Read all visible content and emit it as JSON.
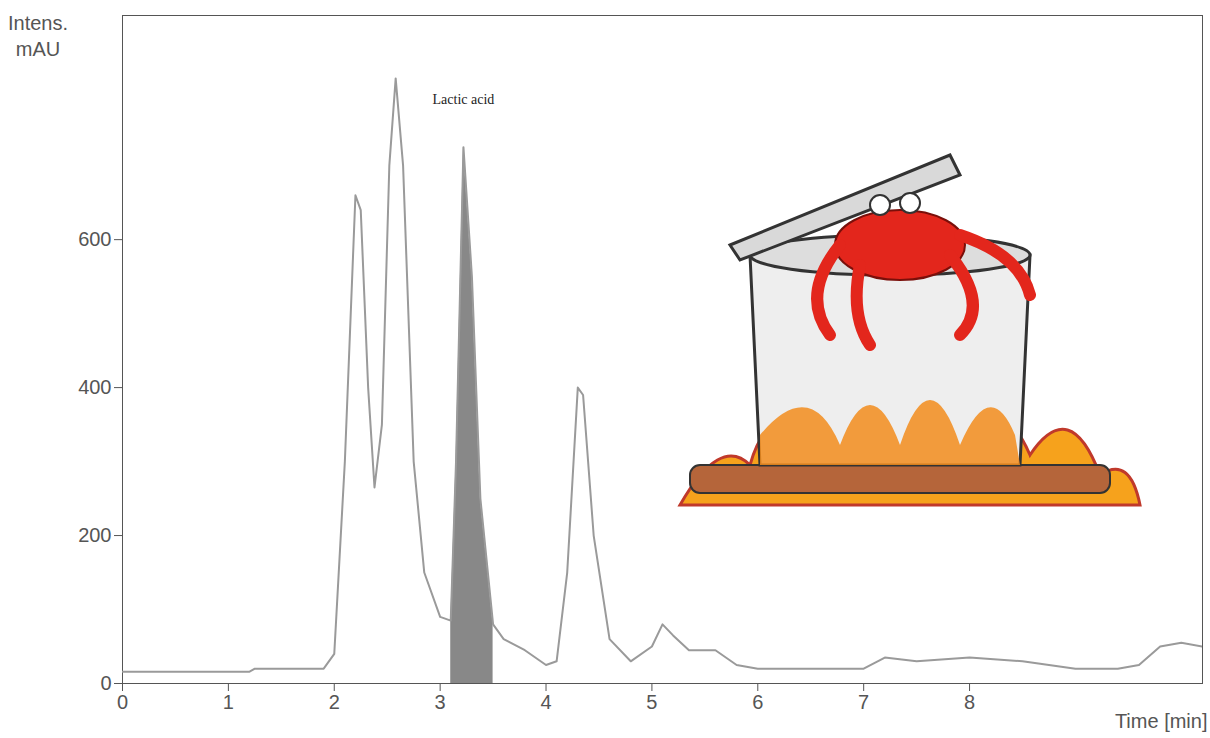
{
  "chart_data": {
    "type": "line",
    "xlabel": "Time [min]",
    "ylabel": "Intens.\nmAU",
    "color": "#9a9a9a",
    "x": [
      0,
      1.2,
      1.25,
      1.9,
      2.0,
      2.1,
      2.2,
      2.25,
      2.32,
      2.38,
      2.45,
      2.52,
      2.58,
      2.65,
      2.75,
      2.85,
      3.0,
      3.1,
      3.15,
      3.22,
      3.3,
      3.38,
      3.5,
      3.6,
      3.8,
      4.0,
      4.1,
      4.2,
      4.3,
      4.35,
      4.45,
      4.6,
      4.8,
      5.0,
      5.1,
      5.2,
      5.35,
      5.5,
      5.6,
      5.8,
      6.0,
      7.0,
      7.2,
      7.5,
      8.0,
      8.5,
      9.0,
      9.4,
      9.6,
      9.8,
      10.0,
      10.2
    ],
    "values": [
      16,
      16,
      20,
      20,
      40,
      300,
      660,
      640,
      400,
      265,
      350,
      700,
      818,
      700,
      300,
      150,
      90,
      85,
      300,
      725,
      550,
      250,
      80,
      60,
      45,
      25,
      30,
      150,
      400,
      390,
      200,
      60,
      30,
      50,
      80,
      65,
      45,
      45,
      45,
      25,
      20,
      20,
      35,
      30,
      35,
      30,
      20,
      20,
      25,
      50,
      55,
      50
    ],
    "highlight": {
      "label": "Lactic acid",
      "x_start": 3.1,
      "x_end": 3.5,
      "color": "#888888",
      "label_x": 3.22,
      "label_y": 790
    },
    "xlim": [
      0,
      10.2
    ],
    "xticks": [
      0,
      1,
      2,
      3,
      4,
      5,
      6,
      7,
      8
    ],
    "ylim": [
      0,
      903
    ],
    "yticks": [
      0,
      200,
      400,
      600
    ],
    "grid": false
  }
}
